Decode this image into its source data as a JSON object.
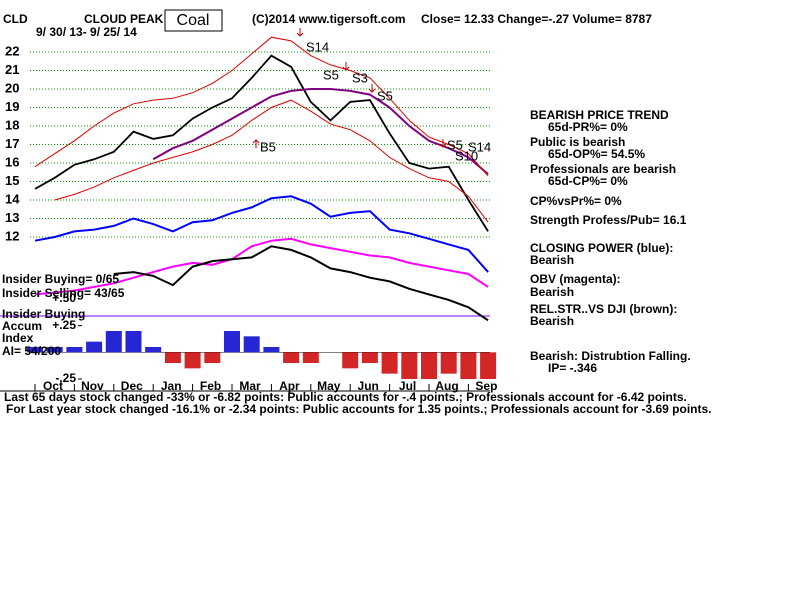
{
  "chart_data": {
    "type": "line",
    "symbol": "CLD",
    "title": "CLOUD PEAK",
    "group": "Coal",
    "copyright": "(C)2014 www.tigersoft.com",
    "quote": "Close=  12.33  Change=-.27 Volume= 8787",
    "date_range": "9/ 30/ 13- 9/ 25/ 14",
    "categories": [
      "Oct",
      null,
      "Nov",
      null,
      "Dec",
      null,
      "Jan",
      null,
      "Feb",
      null,
      "Mar",
      null,
      "Apr",
      null,
      "May",
      null,
      "Jun",
      null,
      "Jul",
      null,
      "Aug",
      null,
      "Sep",
      null
    ],
    "ylim": [
      4,
      23
    ],
    "yticks": [
      12,
      13,
      14,
      15,
      16,
      17,
      18,
      19,
      20,
      21,
      22
    ],
    "grid": true,
    "series": [
      {
        "color": "#000000",
        "values": [
          14.6,
          15.2,
          15.9,
          16.2,
          16.6,
          17.7,
          17.3,
          17.5,
          18.4,
          19.0,
          19.5,
          20.6,
          21.8,
          21.2,
          19.3,
          18.3,
          19.3,
          19.4,
          17.6,
          16.0,
          15.7,
          15.8,
          14.0,
          12.3
        ]
      },
      {
        "color": "#800080",
        "values": [
          null,
          null,
          null,
          null,
          null,
          null,
          16.2,
          16.8,
          17.2,
          17.8,
          18.4,
          19.0,
          19.6,
          19.9,
          20.0,
          20.0,
          19.9,
          19.7,
          19.0,
          18.0,
          17.2,
          16.8,
          16.3,
          15.4
        ]
      },
      {
        "color": "#e00000",
        "values": [
          15.8,
          16.5,
          17.2,
          18.0,
          18.7,
          19.2,
          19.4,
          19.5,
          19.8,
          20.3,
          21.0,
          21.9,
          22.8,
          22.6,
          21.8,
          21.3,
          21.0,
          20.6,
          19.5,
          18.3,
          17.4,
          17.0,
          16.5,
          15.3
        ]
      },
      {
        "color": "#e00000",
        "values": [
          null,
          14.0,
          14.3,
          14.7,
          15.2,
          15.6,
          16.0,
          16.3,
          16.6,
          17.0,
          17.5,
          18.3,
          19.0,
          19.4,
          18.8,
          18.1,
          17.8,
          17.2,
          16.3,
          15.7,
          15.2,
          15.0,
          14.2,
          12.8
        ]
      },
      {
        "color": "#0000ff",
        "values": [
          11.8,
          12.0,
          12.3,
          12.4,
          12.6,
          13.0,
          12.7,
          12.3,
          12.8,
          12.9,
          13.3,
          13.6,
          14.1,
          14.2,
          13.8,
          13.1,
          13.3,
          13.4,
          12.4,
          12.2,
          11.9,
          11.6,
          11.3,
          10.1
        ]
      },
      {
        "color": "#ff00ff",
        "values": [
          8.9,
          9.0,
          9.1,
          9.3,
          9.5,
          9.8,
          10.1,
          10.4,
          10.6,
          10.5,
          10.8,
          11.5,
          11.8,
          11.9,
          11.6,
          11.4,
          11.2,
          11.0,
          10.9,
          10.6,
          10.4,
          10.2,
          10.0,
          9.3
        ]
      },
      {
        "color": "#000000",
        "values": [
          null,
          null,
          null,
          null,
          10.0,
          10.1,
          9.9,
          9.4,
          10.4,
          10.7,
          10.8,
          10.9,
          11.5,
          11.3,
          10.9,
          10.3,
          10.1,
          9.8,
          9.6,
          9.2,
          8.9,
          8.6,
          8.2,
          7.5
        ]
      },
      {
        "axis": "y2",
        "positive_color": "#0000cc",
        "negative_color": "#cc0000",
        "values": [
          0.05,
          0.05,
          0.05,
          0.1,
          0.2,
          0.2,
          0.05,
          -0.1,
          -0.15,
          -0.1,
          0.2,
          0.15,
          0.05,
          -0.1,
          -0.1,
          0.0,
          -0.15,
          -0.1,
          -0.2,
          -0.25,
          -0.25,
          -0.2,
          -0.25,
          -0.25
        ]
      }
    ],
    "y2lim": [
      -0.25,
      0.5
    ],
    "y2ticks": [
      {
        "value": 0.5,
        "label": "+.50"
      },
      {
        "value": 0.25,
        "label": "+.25"
      },
      {
        "value": -0.25,
        "label": "-.25"
      }
    ],
    "annotations": [
      "S14",
      "S5",
      "S3",
      "S5",
      "B5",
      "S5",
      "S14",
      "S10"
    ],
    "insider_buying": "Insider Buying= 0/65",
    "insider_selling": "Insider Selling= 43/65",
    "accum_labels": [
      "Insider Buying",
      "Accum",
      "Index",
      "AI= 54/200"
    ],
    "side_panel": [
      "BEARISH PRICE TREND",
      "65d-PR%= 0%",
      "Public is bearish",
      "65d-OP%= 54.5%",
      "Professionals are bearish",
      "65d-CP%= 0%",
      "CP%vsPr%=  0%",
      "Strength Profess/Pub= 16.1",
      "CLOSING POWER (blue):",
      "Bearish",
      "OBV (magenta):",
      "Bearish",
      "REL.STR..VS DJI (brown):",
      "Bearish",
      "Bearish: Distrubtion Falling.",
      "IP= -.346"
    ],
    "footer": [
      "Last 65 days stock changed -33% or -6.82 points:  Public accounts for -.4 points.;  Professionals account for -6.42 points.",
      "For Last year stock changed -16.1% or -2.34 points:  Public accounts for  1.35 points.;  Professionals account for -3.69 points."
    ]
  }
}
